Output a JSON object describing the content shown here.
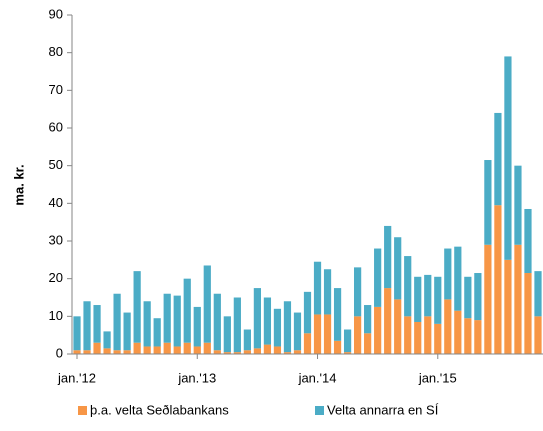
{
  "chart_data": {
    "type": "stacked_bar",
    "ylabel": "ma. kr.",
    "categories": [
      "jan.'12",
      null,
      null,
      null,
      null,
      null,
      null,
      null,
      null,
      null,
      null,
      null,
      "jan.'13",
      null,
      null,
      null,
      null,
      null,
      null,
      null,
      null,
      null,
      null,
      null,
      "jan.'14",
      null,
      null,
      null,
      null,
      null,
      null,
      null,
      null,
      null,
      null,
      null,
      "jan.'15",
      null,
      null,
      null,
      null,
      null,
      null,
      null,
      null,
      null,
      null
    ],
    "series": [
      {
        "name": "þ.a. velta Seðlabankans",
        "color": "#f79646",
        "values": [
          1,
          1,
          3,
          1.5,
          1,
          1,
          3,
          2,
          2,
          3,
          2,
          3,
          2,
          3,
          1,
          0.5,
          0.5,
          1,
          1.5,
          2.5,
          2,
          0.5,
          1,
          5.5,
          10.5,
          10.5,
          3.5,
          0.5,
          10,
          5.5,
          12.5,
          17.5,
          14.5,
          10,
          8.5,
          10,
          8,
          14.5,
          11.5,
          9.5,
          9,
          29,
          39.5,
          25,
          29,
          21.5,
          10
        ]
      },
      {
        "name": "Velta annarra en SÍ",
        "color": "#4bacc6",
        "values": [
          9,
          13,
          10,
          4.5,
          15,
          10,
          19,
          12,
          7.5,
          13,
          13.5,
          17,
          10.5,
          20.5,
          15,
          9.5,
          14.5,
          5.5,
          16,
          12.5,
          10,
          13.5,
          10,
          11,
          14,
          12,
          14,
          6,
          13,
          7.5,
          15.5,
          16.5,
          16.5,
          16,
          12,
          11,
          12.5,
          13.5,
          17,
          11,
          12.5,
          22.5,
          24.5,
          54,
          21,
          17,
          12
        ]
      }
    ],
    "ylim": [
      0,
      90
    ],
    "yticks": [
      0,
      10,
      20,
      30,
      40,
      50,
      60,
      70,
      80,
      90
    ],
    "grid": false,
    "legend": "bottom"
  }
}
